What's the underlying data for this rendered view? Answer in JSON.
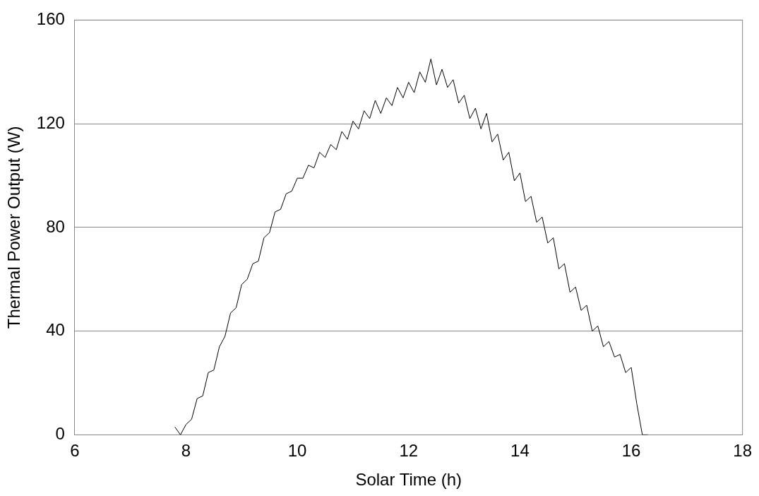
{
  "chart_data": {
    "type": "line",
    "xlabel": "Solar Time (h)",
    "ylabel": "Thermal Power Output (W)",
    "x": [
      7.8,
      7.9,
      8.0,
      8.1,
      8.2,
      8.3,
      8.4,
      8.5,
      8.6,
      8.7,
      8.8,
      8.9,
      9.0,
      9.1,
      9.2,
      9.3,
      9.4,
      9.5,
      9.6,
      9.7,
      9.8,
      9.9,
      10.0,
      10.1,
      10.2,
      10.3,
      10.4,
      10.5,
      10.6,
      10.7,
      10.8,
      10.9,
      11.0,
      11.1,
      11.2,
      11.3,
      11.4,
      11.5,
      11.6,
      11.7,
      11.8,
      11.9,
      12.0,
      12.1,
      12.2,
      12.3,
      12.4,
      12.5,
      12.6,
      12.7,
      12.8,
      12.9,
      13.0,
      13.1,
      13.2,
      13.3,
      13.4,
      13.5,
      13.6,
      13.7,
      13.8,
      13.9,
      14.0,
      14.1,
      14.2,
      14.3,
      14.4,
      14.5,
      14.6,
      14.7,
      14.8,
      14.9,
      15.0,
      15.1,
      15.2,
      15.3,
      15.4,
      15.5,
      15.6,
      15.7,
      15.8,
      15.9,
      16.0,
      16.1,
      16.2,
      16.3
    ],
    "series": [
      {
        "color": "#000000",
        "values": [
          3,
          0,
          4,
          6,
          14,
          15,
          24,
          25,
          34,
          38,
          47,
          49,
          58,
          60,
          66,
          67,
          76,
          78,
          86,
          87,
          93,
          94,
          99,
          99,
          104,
          103,
          109,
          107,
          112,
          110,
          117,
          114,
          121,
          118,
          125,
          122,
          129,
          124,
          130,
          127,
          134,
          130,
          136,
          132,
          140,
          136,
          145,
          135,
          141,
          134,
          137,
          128,
          131,
          122,
          126,
          118,
          124,
          113,
          116,
          106,
          109,
          98,
          101,
          90,
          92,
          82,
          84,
          74,
          76,
          64,
          66,
          55,
          57,
          48,
          50,
          40,
          42,
          34,
          36,
          30,
          31,
          24,
          26,
          12,
          0,
          0
        ]
      }
    ],
    "xlim": [
      6,
      18
    ],
    "xticks": [
      6,
      8,
      10,
      12,
      14,
      16,
      18
    ],
    "ylim": [
      0,
      160
    ],
    "yticks": [
      0,
      40,
      80,
      120,
      160
    ],
    "grid": "y",
    "legend": false,
    "marker": "none",
    "line_style": "solid"
  }
}
